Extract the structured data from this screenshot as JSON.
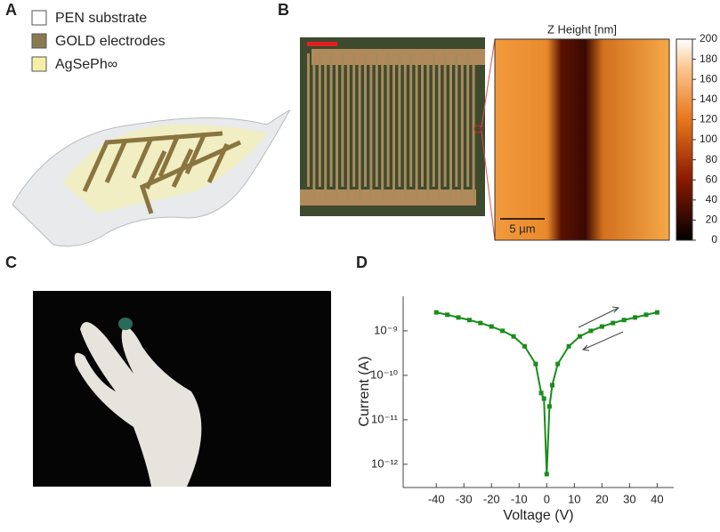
{
  "panels": {
    "a": {
      "label": "A",
      "legend": [
        "PEN substrate",
        "GOLD electrodes",
        "AgSePh∞"
      ]
    },
    "b": {
      "label": "B",
      "afm_title": "Z Height [nm]",
      "scale_bar": "5 µm",
      "colorbar": {
        "lim": [
          0,
          200
        ],
        "ticks": [
          0,
          20,
          40,
          60,
          80,
          100,
          120,
          140,
          160,
          180,
          200
        ]
      }
    },
    "c": {
      "label": "C"
    },
    "d": {
      "label": "D"
    }
  },
  "chart_data": {
    "type": "line",
    "yscale": "log",
    "color": "#1a8c1a",
    "xlabel": "Voltage (V)",
    "ylabel": "Current (A)",
    "x": [
      -40,
      -36,
      -32,
      -28,
      -24,
      -20,
      -16,
      -12,
      -8,
      -4,
      -2,
      -1,
      0,
      1,
      2,
      4,
      8,
      12,
      16,
      20,
      24,
      28,
      32,
      36,
      40
    ],
    "values": [
      2.6e-09,
      2.3e-09,
      2e-09,
      1.75e-09,
      1.5e-09,
      1.25e-09,
      1e-09,
      7.5e-10,
      4.5e-10,
      1.8e-10,
      4e-11,
      3e-11,
      6e-13,
      2e-11,
      6e-11,
      1.8e-10,
      4.5e-10,
      7.5e-10,
      1e-09,
      1.25e-09,
      1.5e-09,
      1.75e-09,
      2e-09,
      2.3e-09,
      2.6e-09
    ],
    "xlim": [
      -52,
      46
    ],
    "ylim": [
      3e-13,
      6e-09
    ],
    "xticks": [
      -40,
      -30,
      -20,
      -10,
      0,
      10,
      20,
      30,
      40
    ],
    "yticks": [
      {
        "value": 1e-12,
        "label": "10⁻¹²"
      },
      {
        "value": 1e-11,
        "label": "10⁻¹¹"
      },
      {
        "value": 1e-10,
        "label": "10⁻¹⁰"
      },
      {
        "value": 1e-09,
        "label": "10⁻⁹"
      }
    ]
  }
}
